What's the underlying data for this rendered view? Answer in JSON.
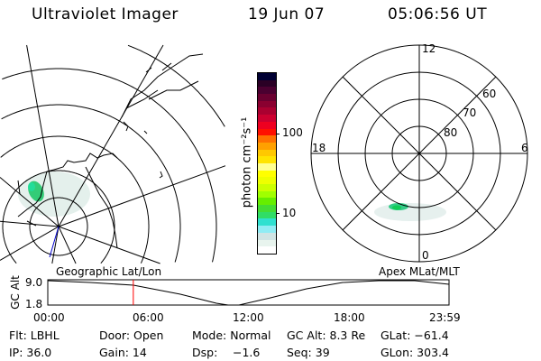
{
  "header": {
    "instrument": "Ultraviolet Imager",
    "date": "19 Jun 07",
    "time": "05:06:56 UT"
  },
  "colorbar": {
    "unit_label": "photon cm⁻²s⁻¹",
    "tick_labels": [
      "100",
      "10"
    ],
    "scale": "log",
    "colors": [
      "#000033",
      "#2a0025",
      "#4a0030",
      "#6a0030",
      "#8a0030",
      "#aa0030",
      "#cc0030",
      "#ee0020",
      "#ff1000",
      "#ff7000",
      "#ffa000",
      "#ffc800",
      "#ffe400",
      "#ffff90",
      "#ffff00",
      "#eeff00",
      "#ccff00",
      "#a0ff00",
      "#66ee00",
      "#44dd33",
      "#30dd66",
      "#30e0d0",
      "#90ecf4",
      "#d0e4e4",
      "#e8f4ee",
      "#ffffff"
    ]
  },
  "polar_plot": {
    "mlt_labels": {
      "top": "12",
      "bottom": "0",
      "left": "18",
      "right": "6"
    },
    "lat_labels": [
      "80",
      "70",
      "60"
    ]
  },
  "map_labels": {
    "left": "Geographic Lat/Lon",
    "right": "Apex MLat/MLT"
  },
  "altitude_plot": {
    "ylabel": "GC Alt",
    "y_ticks": [
      "9.0",
      "1.8"
    ],
    "x_ticks": [
      "00:00",
      "06:00",
      "12:00",
      "18:00",
      "23:59"
    ],
    "current_time_marker_hours": 5.115,
    "marker_color": "#ff0000"
  },
  "info": {
    "filter": "Flt: LBHL",
    "ip": "IP: 36.0",
    "door": "Door: Open",
    "gain": "Gain: 14",
    "mode": "Mode: Normal",
    "dsp_label": "Dsp:",
    "dsp_value": "−1.6",
    "gc_alt": "GC Alt: 8.3 Re",
    "seq": "Seq: 39",
    "glat": "GLat: −61.4",
    "glon": "GLon: 303.4"
  }
}
